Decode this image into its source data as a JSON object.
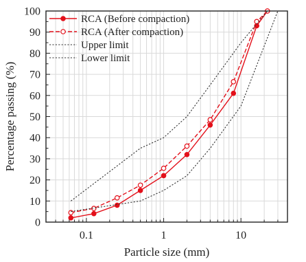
{
  "chart_data": {
    "type": "line",
    "xscale": "log",
    "xlim": [
      0.03,
      40
    ],
    "ylim": [
      0,
      100
    ],
    "xlabel": "Particle size (mm)",
    "ylabel": "Percentage passing (%)",
    "xticks": [
      0.1,
      1,
      10
    ],
    "xtick_labels": [
      "0.1",
      "1",
      "10"
    ],
    "yticks": [
      0,
      10,
      20,
      30,
      40,
      50,
      60,
      70,
      80,
      90,
      100
    ],
    "ytick_labels": [
      "0",
      "10",
      "20",
      "30",
      "40",
      "50",
      "60",
      "70",
      "80",
      "90",
      "100"
    ],
    "grid": true,
    "legend_position": "top-left",
    "series": [
      {
        "name": "RCA (Before compaction)",
        "style": "solid",
        "marker": "filled-circle",
        "color": "#e3101a",
        "x": [
          0.063,
          0.125,
          0.25,
          0.5,
          1,
          2,
          4,
          8,
          16,
          22
        ],
        "y": [
          2,
          4,
          8,
          15,
          22,
          32,
          46,
          61,
          93,
          100
        ]
      },
      {
        "name": "RCA (After compaction)",
        "style": "dashed",
        "marker": "open-circle",
        "color": "#e3101a",
        "x": [
          0.063,
          0.125,
          0.25,
          0.5,
          1,
          2,
          4,
          8,
          16,
          22
        ],
        "y": [
          4.5,
          6.5,
          11.5,
          17.5,
          25.5,
          36,
          48.5,
          66.5,
          95,
          100
        ]
      },
      {
        "name": "Upper limit",
        "style": "dotted",
        "marker": "none",
        "color": "#333333",
        "x": [
          0.063,
          0.5,
          1,
          2,
          4,
          10,
          22
        ],
        "y": [
          10,
          35,
          40,
          50,
          65,
          85,
          100
        ]
      },
      {
        "name": "Lower limit",
        "style": "dotted",
        "marker": "none",
        "color": "#333333",
        "x": [
          0.063,
          0.5,
          1,
          2,
          4,
          10,
          30
        ],
        "y": [
          5,
          10,
          15,
          22,
          35,
          55,
          100
        ]
      }
    ]
  }
}
